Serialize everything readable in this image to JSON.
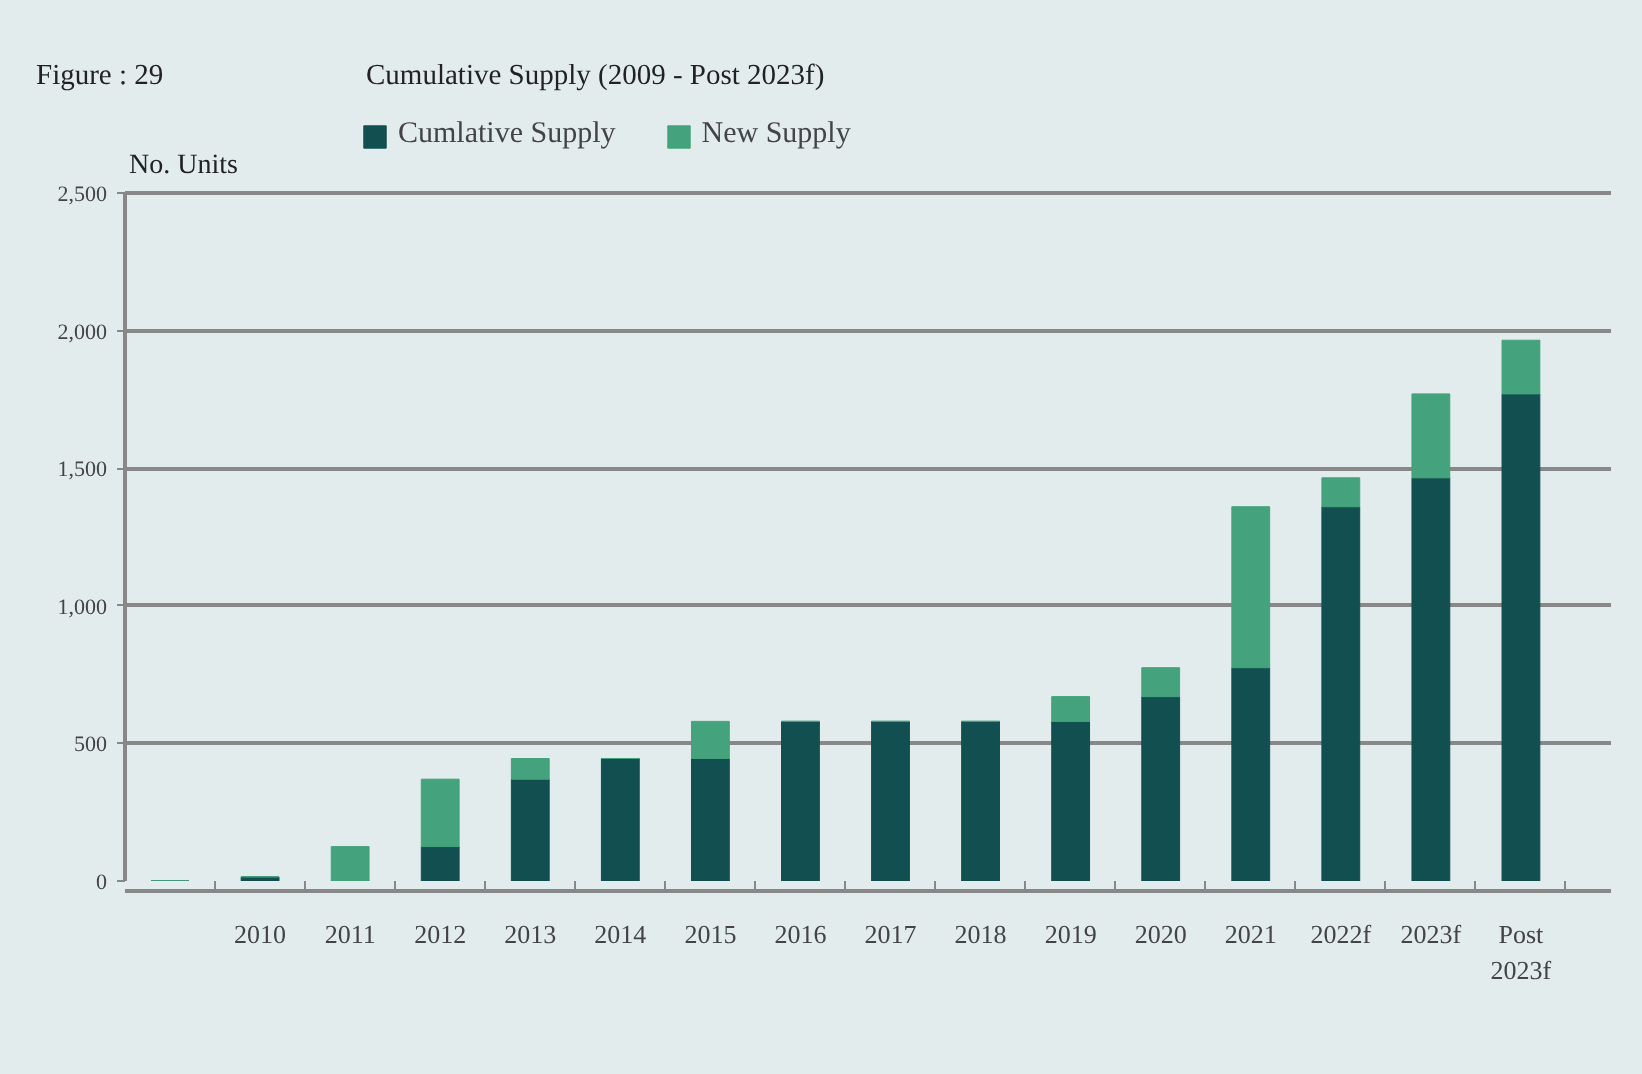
{
  "chart_data": {
    "type": "bar",
    "stacked": true,
    "title": "Cumulative Supply (2009 - Post 2023f)",
    "ylabel": "No. Units",
    "annotations": [
      "Figure : 29"
    ],
    "categories": [
      null,
      "2010",
      "2011",
      "2012",
      "2013",
      "2014",
      "2015",
      "2016",
      "2017",
      "2018",
      "2019",
      "2020",
      "2021",
      "2022f",
      "2023f",
      "Post 2023f"
    ],
    "series": [
      {
        "name": "Cumlative Supply",
        "color": "#124f50",
        "values": [
          0,
          15,
          0,
          125,
          370,
          445,
          445,
          580,
          580,
          580,
          580,
          670,
          775,
          1360,
          1465,
          1770
        ]
      },
      {
        "name": "New Supply",
        "color": "#44a27c",
        "values": [
          0,
          0,
          125,
          245,
          75,
          0,
          135,
          0,
          0,
          0,
          90,
          105,
          585,
          105,
          305,
          195
        ]
      }
    ],
    "ylim": [
      0,
      2500
    ],
    "yticks": [
      {
        "value": 0,
        "label": "0"
      },
      {
        "value": 500,
        "label": "500"
      },
      {
        "value": 1000,
        "label": "1,000"
      },
      {
        "value": 1500,
        "label": "1,500"
      },
      {
        "value": 2000,
        "label": "2,000"
      },
      {
        "value": 2500,
        "label": "2,500"
      }
    ],
    "grid": "y",
    "legend": "top left"
  }
}
